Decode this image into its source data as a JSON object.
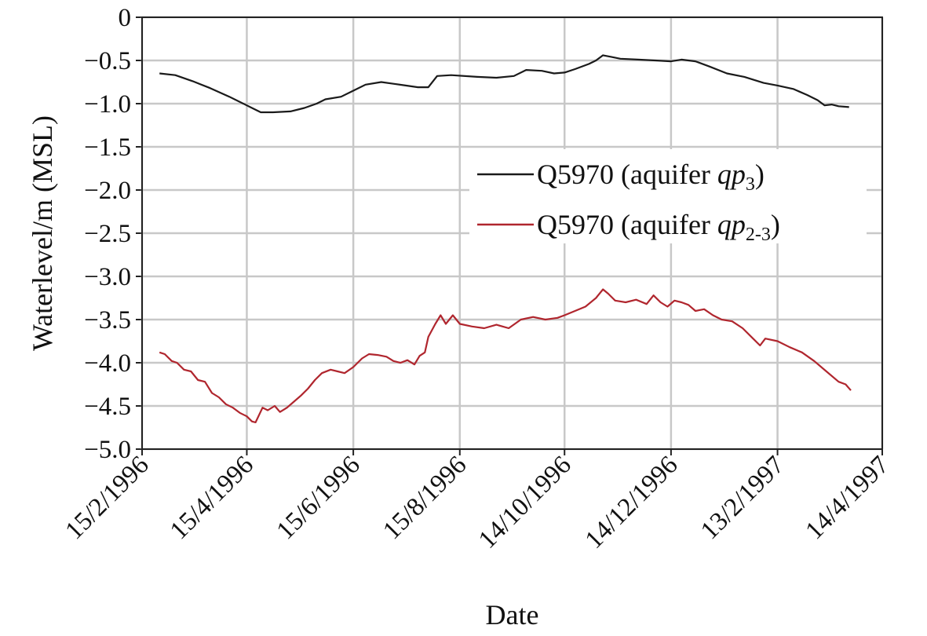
{
  "chart_data": {
    "type": "line",
    "xlabel": "Date",
    "ylabel": "Waterlevel/m (MSL)",
    "ylim": [
      -5.0,
      0
    ],
    "yticks": [
      0,
      -0.5,
      -1.0,
      -1.5,
      -2.0,
      -2.5,
      -3.0,
      -3.5,
      -4.0,
      -4.5,
      -5.0
    ],
    "ytick_labels": [
      "0",
      "−0.5",
      "−1.0",
      "−1.5",
      "−2.0",
      "−2.5",
      "−3.0",
      "−3.5",
      "−4.0",
      "−4.5",
      "−5.0"
    ],
    "xlim": [
      "1996-02-15",
      "1997-04-14"
    ],
    "xticks": [
      "1996-02-15",
      "1996-04-15",
      "1996-06-15",
      "1996-08-15",
      "1996-10-14",
      "1996-12-14",
      "1997-02-13",
      "1997-04-14"
    ],
    "xtick_labels": [
      "15/2/1996",
      "15/4/1996",
      "15/6/1996",
      "15/8/1996",
      "14/10/1996",
      "14/12/1996",
      "13/2/1997",
      "14/4/1997"
    ],
    "grid": true,
    "legend_position": "center-right",
    "series": [
      {
        "name": "Q5970 (aquifer qp3)",
        "legend_label": {
          "prefix": "Q5970 (aquifer ",
          "italic": "qp",
          "sub": "3",
          "suffix": ")"
        },
        "color": "#1a1a1a",
        "points": [
          [
            "1996-02-25",
            -0.65
          ],
          [
            "1996-03-05",
            -0.67
          ],
          [
            "1996-03-15",
            -0.74
          ],
          [
            "1996-03-25",
            -0.82
          ],
          [
            "1996-04-05",
            -0.92
          ],
          [
            "1996-04-15",
            -1.02
          ],
          [
            "1996-04-19",
            -1.06
          ],
          [
            "1996-04-23",
            -1.1
          ],
          [
            "1996-04-30",
            -1.1
          ],
          [
            "1996-05-10",
            -1.09
          ],
          [
            "1996-05-18",
            -1.05
          ],
          [
            "1996-05-25",
            -1.0
          ],
          [
            "1996-05-30",
            -0.95
          ],
          [
            "1996-06-08",
            -0.92
          ],
          [
            "1996-06-15",
            -0.85
          ],
          [
            "1996-06-22",
            -0.78
          ],
          [
            "1996-07-01",
            -0.75
          ],
          [
            "1996-07-08",
            -0.77
          ],
          [
            "1996-07-15",
            -0.79
          ],
          [
            "1996-07-22",
            -0.81
          ],
          [
            "1996-07-28",
            -0.81
          ],
          [
            "1996-08-02",
            -0.68
          ],
          [
            "1996-08-10",
            -0.67
          ],
          [
            "1996-08-25",
            -0.69
          ],
          [
            "1996-09-05",
            -0.7
          ],
          [
            "1996-09-15",
            -0.68
          ],
          [
            "1996-09-22",
            -0.61
          ],
          [
            "1996-10-01",
            -0.62
          ],
          [
            "1996-10-08",
            -0.65
          ],
          [
            "1996-10-14",
            -0.64
          ],
          [
            "1996-10-20",
            -0.6
          ],
          [
            "1996-10-28",
            -0.54
          ],
          [
            "1996-11-01",
            -0.5
          ],
          [
            "1996-11-05",
            -0.44
          ],
          [
            "1996-11-10",
            -0.46
          ],
          [
            "1996-11-15",
            -0.48
          ],
          [
            "1996-11-25",
            -0.49
          ],
          [
            "1996-12-05",
            -0.5
          ],
          [
            "1996-12-14",
            -0.51
          ],
          [
            "1996-12-20",
            -0.49
          ],
          [
            "1996-12-28",
            -0.51
          ],
          [
            "1997-01-05",
            -0.57
          ],
          [
            "1997-01-15",
            -0.65
          ],
          [
            "1997-01-25",
            -0.69
          ],
          [
            "1997-02-05",
            -0.76
          ],
          [
            "1997-02-13",
            -0.79
          ],
          [
            "1997-02-22",
            -0.83
          ],
          [
            "1997-03-02",
            -0.9
          ],
          [
            "1997-03-08",
            -0.96
          ],
          [
            "1997-03-12",
            -1.02
          ],
          [
            "1997-03-16",
            -1.01
          ],
          [
            "1997-03-20",
            -1.03
          ],
          [
            "1997-03-26",
            -1.04
          ]
        ]
      },
      {
        "name": "Q5970 (aquifer qp2-3)",
        "legend_label": {
          "prefix": "Q5970 (aquifer ",
          "italic": "qp",
          "sub": "2-3",
          "suffix": ")"
        },
        "color": "#b0262e",
        "points": [
          [
            "1996-02-25",
            -3.88
          ],
          [
            "1996-02-28",
            -3.9
          ],
          [
            "1996-03-03",
            -3.98
          ],
          [
            "1996-03-06",
            -4.0
          ],
          [
            "1996-03-10",
            -4.08
          ],
          [
            "1996-03-14",
            -4.1
          ],
          [
            "1996-03-18",
            -4.2
          ],
          [
            "1996-03-22",
            -4.22
          ],
          [
            "1996-03-26",
            -4.35
          ],
          [
            "1996-03-30",
            -4.4
          ],
          [
            "1996-04-03",
            -4.48
          ],
          [
            "1996-04-07",
            -4.52
          ],
          [
            "1996-04-11",
            -4.58
          ],
          [
            "1996-04-15",
            -4.62
          ],
          [
            "1996-04-18",
            -4.68
          ],
          [
            "1996-04-20",
            -4.69
          ],
          [
            "1996-04-24",
            -4.52
          ],
          [
            "1996-04-27",
            -4.55
          ],
          [
            "1996-05-01",
            -4.5
          ],
          [
            "1996-05-04",
            -4.57
          ],
          [
            "1996-05-08",
            -4.52
          ],
          [
            "1996-05-12",
            -4.45
          ],
          [
            "1996-05-16",
            -4.38
          ],
          [
            "1996-05-20",
            -4.3
          ],
          [
            "1996-05-24",
            -4.2
          ],
          [
            "1996-05-28",
            -4.12
          ],
          [
            "1996-06-02",
            -4.08
          ],
          [
            "1996-06-06",
            -4.1
          ],
          [
            "1996-06-10",
            -4.12
          ],
          [
            "1996-06-15",
            -4.05
          ],
          [
            "1996-06-20",
            -3.95
          ],
          [
            "1996-06-24",
            -3.9
          ],
          [
            "1996-06-29",
            -3.91
          ],
          [
            "1996-07-04",
            -3.93
          ],
          [
            "1996-07-08",
            -3.98
          ],
          [
            "1996-07-12",
            -4.0
          ],
          [
            "1996-07-16",
            -3.97
          ],
          [
            "1996-07-20",
            -4.02
          ],
          [
            "1996-07-23",
            -3.92
          ],
          [
            "1996-07-26",
            -3.88
          ],
          [
            "1996-07-28",
            -3.7
          ],
          [
            "1996-08-01",
            -3.55
          ],
          [
            "1996-08-04",
            -3.45
          ],
          [
            "1996-08-07",
            -3.55
          ],
          [
            "1996-08-11",
            -3.45
          ],
          [
            "1996-08-15",
            -3.55
          ],
          [
            "1996-08-22",
            -3.58
          ],
          [
            "1996-08-29",
            -3.6
          ],
          [
            "1996-09-05",
            -3.56
          ],
          [
            "1996-09-12",
            -3.6
          ],
          [
            "1996-09-19",
            -3.5
          ],
          [
            "1996-09-26",
            -3.47
          ],
          [
            "1996-10-03",
            -3.5
          ],
          [
            "1996-10-10",
            -3.48
          ],
          [
            "1996-10-14",
            -3.45
          ],
          [
            "1996-10-20",
            -3.4
          ],
          [
            "1996-10-26",
            -3.35
          ],
          [
            "1996-11-01",
            -3.25
          ],
          [
            "1996-11-05",
            -3.15
          ],
          [
            "1996-11-08",
            -3.2
          ],
          [
            "1996-11-12",
            -3.28
          ],
          [
            "1996-11-18",
            -3.3
          ],
          [
            "1996-11-24",
            -3.27
          ],
          [
            "1996-11-30",
            -3.32
          ],
          [
            "1996-12-04",
            -3.22
          ],
          [
            "1996-12-08",
            -3.3
          ],
          [
            "1996-12-12",
            -3.35
          ],
          [
            "1996-12-16",
            -3.28
          ],
          [
            "1996-12-20",
            -3.3
          ],
          [
            "1996-12-24",
            -3.33
          ],
          [
            "1996-12-28",
            -3.4
          ],
          [
            "1997-01-02",
            -3.38
          ],
          [
            "1997-01-07",
            -3.45
          ],
          [
            "1997-01-12",
            -3.5
          ],
          [
            "1997-01-18",
            -3.52
          ],
          [
            "1997-01-24",
            -3.6
          ],
          [
            "1997-01-30",
            -3.72
          ],
          [
            "1997-02-03",
            -3.8
          ],
          [
            "1997-02-06",
            -3.72
          ],
          [
            "1997-02-13",
            -3.75
          ],
          [
            "1997-02-20",
            -3.82
          ],
          [
            "1997-02-27",
            -3.88
          ],
          [
            "1997-03-06",
            -3.98
          ],
          [
            "1997-03-13",
            -4.1
          ],
          [
            "1997-03-20",
            -4.22
          ],
          [
            "1997-03-24",
            -4.25
          ],
          [
            "1997-03-27",
            -4.32
          ]
        ]
      }
    ]
  }
}
